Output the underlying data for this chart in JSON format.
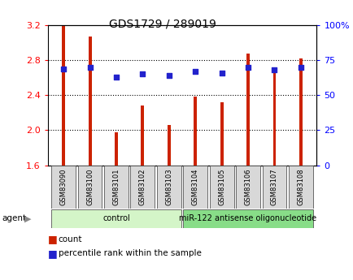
{
  "title": "GDS1729 / 289019",
  "samples": [
    "GSM83090",
    "GSM83100",
    "GSM83101",
    "GSM83102",
    "GSM83103",
    "GSM83104",
    "GSM83105",
    "GSM83106",
    "GSM83107",
    "GSM83108"
  ],
  "count_values": [
    3.19,
    3.07,
    1.98,
    2.28,
    2.06,
    2.38,
    2.32,
    2.88,
    2.72,
    2.82
  ],
  "percentile_values": [
    69,
    70,
    63,
    65,
    64,
    67,
    66,
    70,
    68,
    70
  ],
  "bar_color": "#cc2200",
  "dot_color": "#2222cc",
  "ylim_left": [
    1.6,
    3.2
  ],
  "ylim_right": [
    0,
    100
  ],
  "yticks_left": [
    1.6,
    2.0,
    2.4,
    2.8,
    3.2
  ],
  "yticks_right": [
    0,
    25,
    50,
    75,
    100
  ],
  "ytick_labels_right": [
    "0",
    "25",
    "50",
    "75",
    "100%"
  ],
  "grid_values": [
    2.0,
    2.4,
    2.8
  ],
  "groups": [
    {
      "label": "control",
      "start": 0,
      "end": 4,
      "color": "#d4f5c8"
    },
    {
      "label": "miR-122 antisense oligonucleotide",
      "start": 5,
      "end": 9,
      "color": "#88dd88"
    }
  ],
  "bar_width": 0.12,
  "legend_count_label": "count",
  "legend_percentile_label": "percentile rank within the sample",
  "agent_label": "agent",
  "sample_box_color": "#d8d8d8",
  "plot_bg_color": "#ffffff"
}
